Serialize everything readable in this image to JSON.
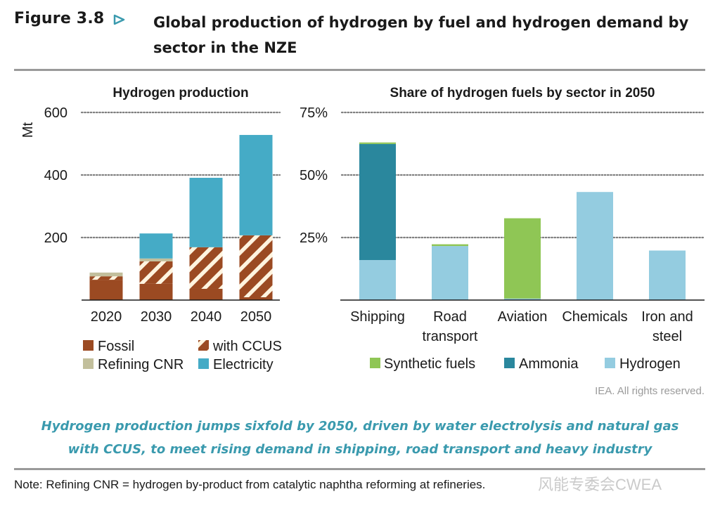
{
  "header": {
    "figure_label": "Figure 3.8",
    "arrow_icon": "triangle-right-outline-icon",
    "title": "Global production of hydrogen by fuel and hydrogen demand by sector in the NZE"
  },
  "colors": {
    "fossil": "#9b4a22",
    "with_ccus_stripe": "#fff4df",
    "refining_cnr": "#c2bf9c",
    "electricity": "#45abc6",
    "synthetic_fuels": "#8fc655",
    "ammonia": "#2a879d",
    "hydrogen": "#94cce0",
    "accent": "#3a9aae",
    "gridline": "#7f7f7f"
  },
  "chart_data": [
    {
      "type": "bar",
      "stacked": true,
      "title": "Hydrogen production",
      "xlabel": "",
      "ylabel": "Mt",
      "ylim": [
        0,
        600
      ],
      "yticks": [
        200,
        400,
        600
      ],
      "ytick_labels": [
        "200",
        "400",
        "600"
      ],
      "grid": true,
      "categories": [
        "2020",
        "2030",
        "2040",
        "2050"
      ],
      "series": [
        {
          "name": "Fossil",
          "key": "fossil",
          "values": [
            65,
            52,
            36,
            9
          ]
        },
        {
          "name": "with CCUS",
          "key": "with_ccus",
          "values": [
            11,
            72,
            133,
            198
          ]
        },
        {
          "name": "Refining CNR",
          "key": "refining_cnr",
          "values": [
            12,
            9,
            0,
            0
          ]
        },
        {
          "name": "Electricity",
          "key": "electricity",
          "values": [
            0,
            80,
            222,
            321
          ]
        }
      ],
      "legend": {
        "placement": "bottom",
        "items": [
          "Fossil",
          "with CCUS",
          "Refining CNR",
          "Electricity"
        ]
      }
    },
    {
      "type": "bar",
      "stacked": true,
      "title": "Share of hydrogen fuels by sector in 2050",
      "xlabel": "",
      "ylabel": "",
      "ylim": [
        0,
        75
      ],
      "yticks": [
        25,
        50,
        75
      ],
      "ytick_labels": [
        "25%",
        "50%",
        "75%"
      ],
      "grid": true,
      "categories": [
        [
          "Shipping"
        ],
        [
          "Road",
          "transport"
        ],
        [
          "Aviation"
        ],
        [
          "Chemicals"
        ],
        [
          "Iron and",
          "steel"
        ]
      ],
      "series": [
        {
          "name": "Hydrogen",
          "key": "hydrogen",
          "values": [
            16.0,
            21.6,
            0.6,
            43.2,
            19.8
          ]
        },
        {
          "name": "Ammonia",
          "key": "ammonia",
          "values": [
            46.4,
            0,
            0,
            0,
            0
          ]
        },
        {
          "name": "Synthetic fuels",
          "key": "synthetic_fuels",
          "values": [
            0.6,
            0.7,
            32.1,
            0,
            0
          ]
        }
      ],
      "legend": {
        "placement": "bottom",
        "items": [
          "Synthetic fuels",
          "Ammonia",
          "Hydrogen"
        ]
      }
    }
  ],
  "copyright": "IEA. All rights reserved.",
  "conclusion": {
    "line1": "Hydrogen production jumps sixfold by 2050, driven by water electrolysis and natural gas",
    "line2": "with CCUS, to meet rising demand in shipping, road transport and heavy industry"
  },
  "note": "Note: Refining CNR = hydrogen by-product from catalytic naphtha reforming at refineries.",
  "watermark": "风能专委会CWEA"
}
